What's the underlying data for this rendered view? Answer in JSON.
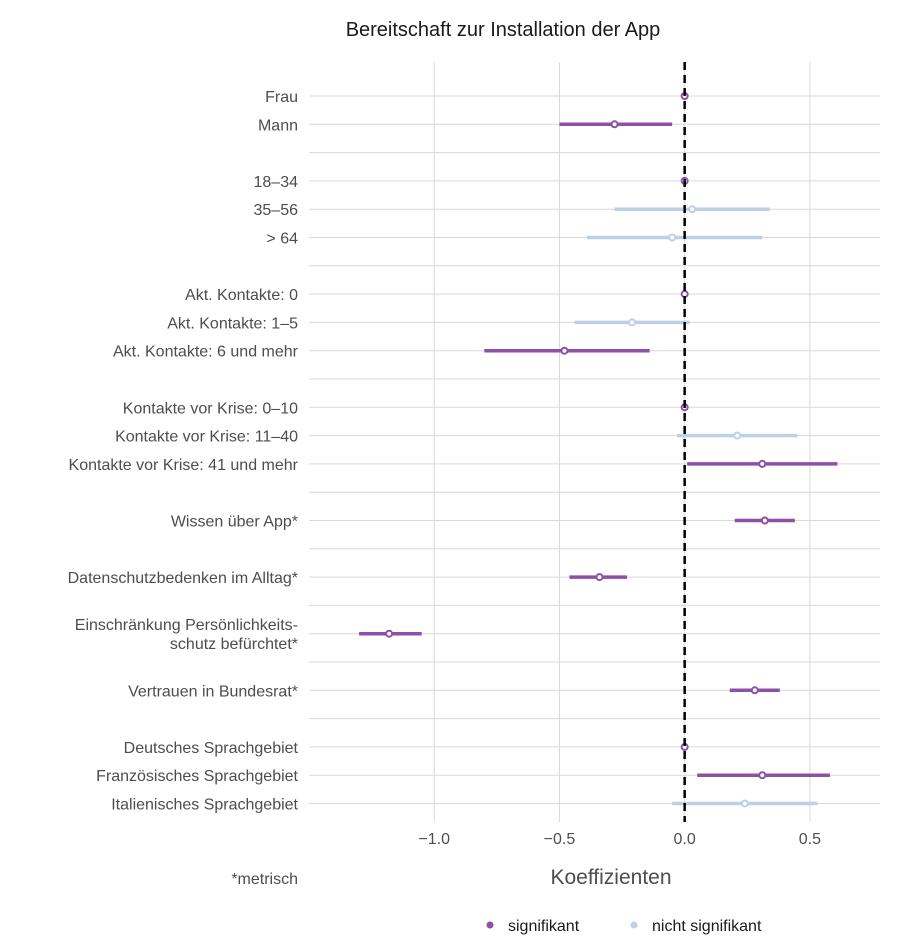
{
  "chart_data": {
    "type": "forest",
    "title": "Bereitschaft zur Installation der App",
    "xlabel": "Koeffizienten",
    "footnote": "*metrisch",
    "xlim": [
      -1.5,
      0.78
    ],
    "xticks": [
      -1.0,
      -0.5,
      0.0,
      0.5
    ],
    "xtick_labels": [
      "−1.0",
      "−0.5",
      "0.0",
      "0.5"
    ],
    "reference_line": 0,
    "grid": true,
    "legend_position": "bottom",
    "legend": [
      {
        "key": "sig",
        "label": "signifikant",
        "color": "#8e4fa6"
      },
      {
        "key": "ns",
        "label": "nicht signifikant",
        "color": "#bcd0e6"
      }
    ],
    "rows": [
      {
        "label": "Frau",
        "est": 0.0,
        "lo": 0.0,
        "hi": 0.0,
        "sig": true
      },
      {
        "label": "Mann",
        "est": -0.28,
        "lo": -0.5,
        "hi": -0.05,
        "sig": true
      },
      {
        "label": "",
        "spacer": true
      },
      {
        "label": "18–34",
        "est": 0.0,
        "lo": 0.0,
        "hi": 0.0,
        "sig": true
      },
      {
        "label": "35–56",
        "est": 0.03,
        "lo": -0.28,
        "hi": 0.34,
        "sig": false
      },
      {
        "label": "> 64",
        "est": -0.05,
        "lo": -0.39,
        "hi": 0.31,
        "sig": false
      },
      {
        "label": "",
        "spacer": true
      },
      {
        "label": "Akt. Kontakte: 0",
        "est": 0.0,
        "lo": 0.0,
        "hi": 0.0,
        "sig": true
      },
      {
        "label": "Akt. Kontakte: 1–5",
        "est": -0.21,
        "lo": -0.44,
        "hi": 0.02,
        "sig": false
      },
      {
        "label": "Akt. Kontakte: 6 und mehr",
        "est": -0.48,
        "lo": -0.8,
        "hi": -0.14,
        "sig": true
      },
      {
        "label": "",
        "spacer": true
      },
      {
        "label": "Kontakte vor Krise: 0–10",
        "est": 0.0,
        "lo": 0.0,
        "hi": 0.0,
        "sig": true
      },
      {
        "label": "Kontakte vor Krise: 11–40",
        "est": 0.21,
        "lo": -0.03,
        "hi": 0.45,
        "sig": false
      },
      {
        "label": "Kontakte vor Krise: 41 und mehr",
        "est": 0.31,
        "lo": 0.01,
        "hi": 0.61,
        "sig": true
      },
      {
        "label": "",
        "spacer": true
      },
      {
        "label": "Wissen über App*",
        "est": 0.32,
        "lo": 0.2,
        "hi": 0.44,
        "sig": true
      },
      {
        "label": "",
        "spacer": true
      },
      {
        "label": "Datenschutzbedenken im Alltag*",
        "est": -0.34,
        "lo": -0.46,
        "hi": -0.23,
        "sig": true
      },
      {
        "label": "",
        "spacer": true
      },
      {
        "label": "Einschränkung Persönlichkeits-\nschutz befürchtet*",
        "est": -1.18,
        "lo": -1.3,
        "hi": -1.05,
        "sig": true
      },
      {
        "label": "",
        "spacer": true
      },
      {
        "label": "Vertrauen in Bundesrat*",
        "est": 0.28,
        "lo": 0.18,
        "hi": 0.38,
        "sig": true
      },
      {
        "label": "",
        "spacer": true
      },
      {
        "label": "Deutsches Sprachgebiet",
        "est": 0.0,
        "lo": 0.0,
        "hi": 0.0,
        "sig": true
      },
      {
        "label": "Französisches Sprachgebiet",
        "est": 0.31,
        "lo": 0.05,
        "hi": 0.58,
        "sig": true
      },
      {
        "label": "Italienisches Sprachgebiet",
        "est": 0.24,
        "lo": -0.05,
        "hi": 0.53,
        "sig": false
      }
    ]
  }
}
